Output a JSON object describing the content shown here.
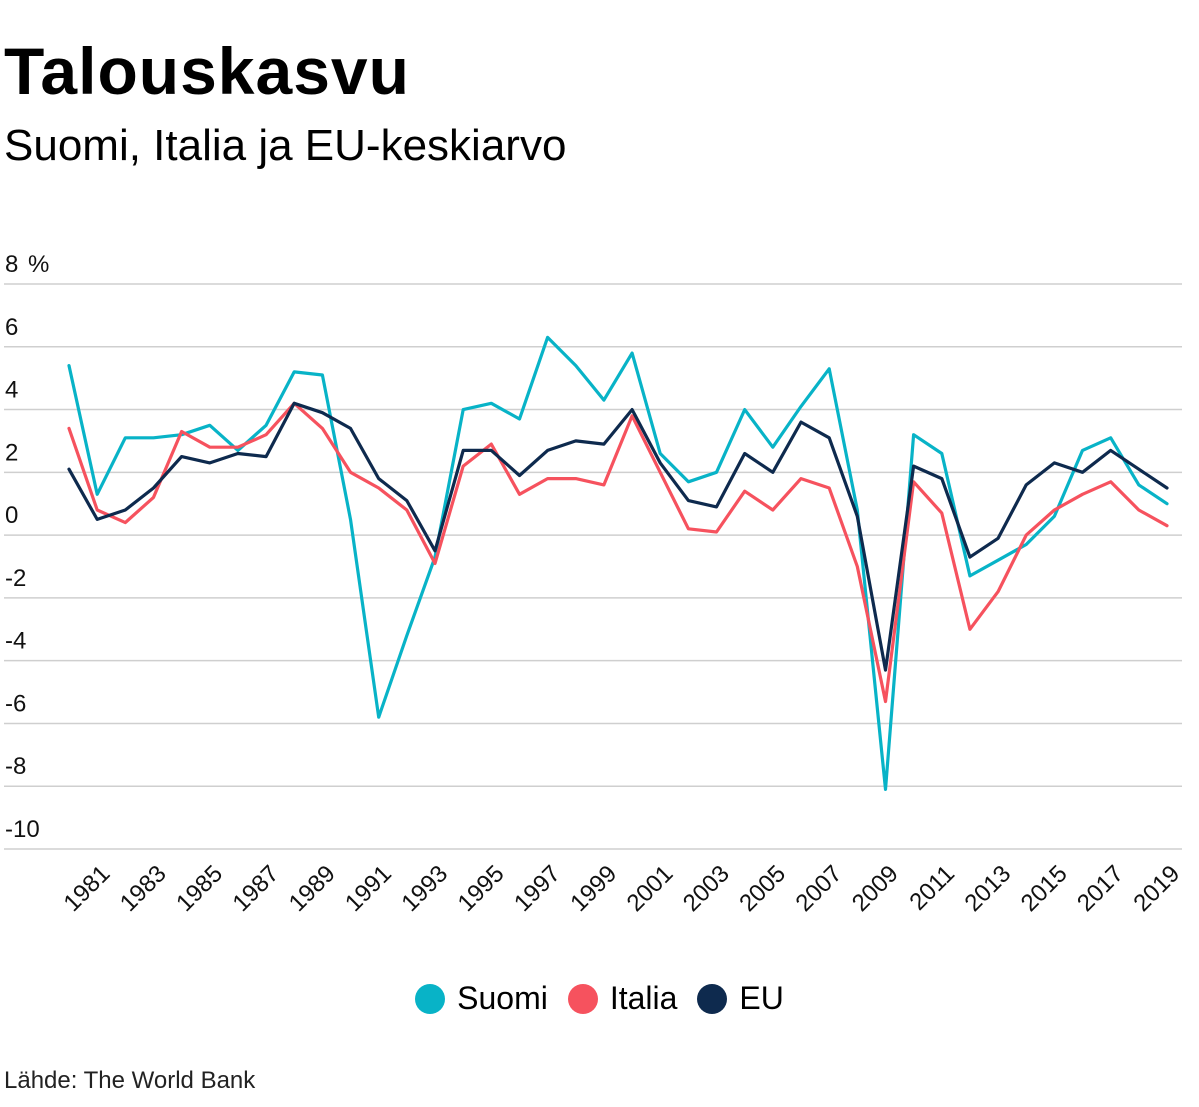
{
  "title": "Talouskasvu",
  "subtitle": "Suomi, Italia ja EU-keskiarvo",
  "source": "Lähde: The World Bank",
  "chart_data": {
    "type": "line",
    "title": "Talouskasvu",
    "subtitle": "Suomi, Italia ja EU-keskiarvo",
    "xlabel": "",
    "ylabel": "%",
    "ylim": [
      -10,
      8
    ],
    "yticks": [
      8,
      6,
      4,
      2,
      0,
      -2,
      -4,
      -6,
      -8,
      -10
    ],
    "grid": true,
    "legend_position": "bottom",
    "x": [
      1980,
      1981,
      1982,
      1983,
      1984,
      1985,
      1986,
      1987,
      1988,
      1989,
      1990,
      1991,
      1992,
      1993,
      1994,
      1995,
      1996,
      1997,
      1998,
      1999,
      2000,
      2001,
      2002,
      2003,
      2004,
      2005,
      2006,
      2007,
      2008,
      2009,
      2010,
      2011,
      2012,
      2013,
      2014,
      2015,
      2016,
      2017,
      2018,
      2019
    ],
    "xtick_labels": [
      "1981",
      "1983",
      "1985",
      "1987",
      "1989",
      "1991",
      "1993",
      "1995",
      "1997",
      "1999",
      "2001",
      "2003",
      "2005",
      "2007",
      "2009",
      "2011",
      "2013",
      "2015",
      "2017",
      "2019"
    ],
    "series": [
      {
        "name": "Suomi",
        "color": "#08b3c7",
        "values": [
          5.4,
          1.3,
          3.1,
          3.1,
          3.2,
          3.5,
          2.7,
          3.5,
          5.2,
          5.1,
          0.5,
          -5.8,
          -3.2,
          -0.7,
          4.0,
          4.2,
          3.7,
          6.3,
          5.4,
          4.3,
          5.8,
          2.6,
          1.7,
          2.0,
          4.0,
          2.8,
          4.1,
          5.3,
          0.8,
          -8.1,
          3.2,
          2.6,
          -1.3,
          -0.8,
          -0.3,
          0.6,
          2.7,
          3.1,
          1.6,
          1.0
        ]
      },
      {
        "name": "Italia",
        "color": "#f6525e",
        "values": [
          3.4,
          0.8,
          0.4,
          1.2,
          3.3,
          2.8,
          2.8,
          3.2,
          4.2,
          3.4,
          2.0,
          1.5,
          0.8,
          -0.9,
          2.2,
          2.9,
          1.3,
          1.8,
          1.8,
          1.6,
          3.8,
          2.0,
          0.2,
          0.1,
          1.4,
          0.8,
          1.8,
          1.5,
          -1.0,
          -5.3,
          1.7,
          0.7,
          -3.0,
          -1.8,
          0.0,
          0.8,
          1.3,
          1.7,
          0.8,
          0.3
        ]
      },
      {
        "name": "EU",
        "color": "#0e2a4e",
        "values": [
          2.1,
          0.5,
          0.8,
          1.5,
          2.5,
          2.3,
          2.6,
          2.5,
          4.2,
          3.9,
          3.4,
          1.8,
          1.1,
          -0.5,
          2.7,
          2.7,
          1.9,
          2.7,
          3.0,
          2.9,
          4.0,
          2.3,
          1.1,
          0.9,
          2.6,
          2.0,
          3.6,
          3.1,
          0.6,
          -4.3,
          2.2,
          1.8,
          -0.7,
          -0.1,
          1.6,
          2.3,
          2.0,
          2.7,
          2.1,
          1.5
        ]
      }
    ]
  }
}
